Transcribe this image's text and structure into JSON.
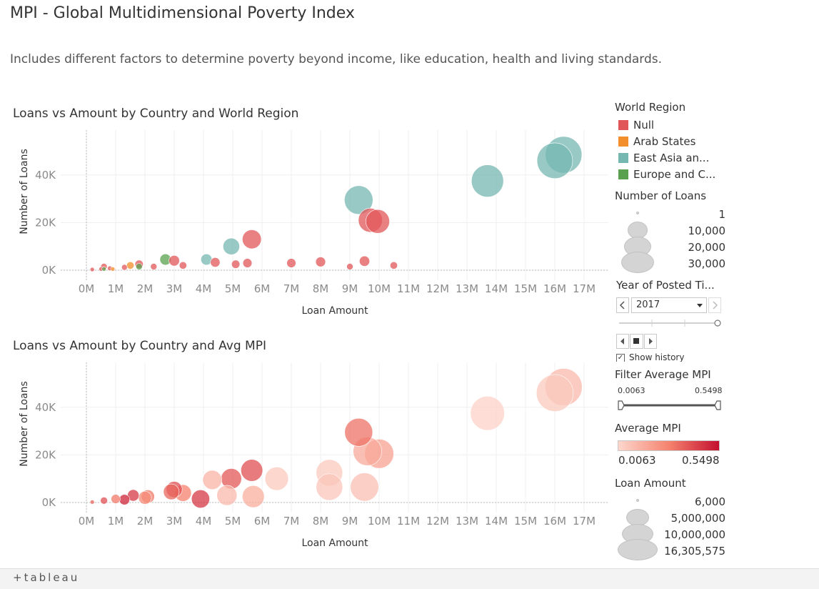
{
  "header": {
    "title": "MPI - Global Multidimensional Poverty Index",
    "subtitle": "Includes different factors to determine poverty beyond income, like education, health and living standards."
  },
  "chart_data": [
    {
      "type": "scatter",
      "title": "Loans vs Amount by Country and World Region",
      "xlabel": "Loan Amount",
      "ylabel": "Number of Loans",
      "xlim": [
        0,
        17
      ],
      "ylim": [
        0,
        50000
      ],
      "x_ticks": [
        "0M",
        "1M",
        "2M",
        "3M",
        "4M",
        "5M",
        "6M",
        "7M",
        "8M",
        "9M",
        "10M",
        "11M",
        "12M",
        "13M",
        "14M",
        "15M",
        "16M",
        "17M"
      ],
      "y_ticks": [
        "0K",
        "20K",
        "40K"
      ],
      "series": [
        {
          "name": "Null",
          "color": "#e15759",
          "points": [
            {
              "x": 0.2,
              "y": 300
            },
            {
              "x": 0.5,
              "y": 500
            },
            {
              "x": 0.8,
              "y": 800
            },
            {
              "x": 1.3,
              "y": 1200
            },
            {
              "x": 2.3,
              "y": 1500
            },
            {
              "x": 3.3,
              "y": 2000
            },
            {
              "x": 5.5,
              "y": 3000
            },
            {
              "x": 9.0,
              "y": 1500
            },
            {
              "x": 10.5,
              "y": 2000
            },
            {
              "x": 5.65,
              "y": 13000
            },
            {
              "x": 9.7,
              "y": 21000
            },
            {
              "x": 9.95,
              "y": 20500
            },
            {
              "x": 3.0,
              "y": 4000
            },
            {
              "x": 4.4,
              "y": 3300
            },
            {
              "x": 7.0,
              "y": 3000
            },
            {
              "x": 8.0,
              "y": 3500
            },
            {
              "x": 9.5,
              "y": 3800
            },
            {
              "x": 1.8,
              "y": 2500
            },
            {
              "x": 0.6,
              "y": 1500
            },
            {
              "x": 5.1,
              "y": 2500
            }
          ]
        },
        {
          "name": "Arab States",
          "color": "#f28e2b",
          "points": [
            {
              "x": 1.5,
              "y": 2000
            },
            {
              "x": 0.9,
              "y": 500
            }
          ]
        },
        {
          "name": "East Asia an...",
          "color": "#76b7b2",
          "points": [
            {
              "x": 16.0,
              "y": 46000
            },
            {
              "x": 16.3,
              "y": 48500
            },
            {
              "x": 13.7,
              "y": 37500
            },
            {
              "x": 9.3,
              "y": 29500
            },
            {
              "x": 4.95,
              "y": 10000
            },
            {
              "x": 4.1,
              "y": 4500
            }
          ]
        },
        {
          "name": "Europe and C...",
          "color": "#59a14f",
          "points": [
            {
              "x": 2.7,
              "y": 4500
            },
            {
              "x": 1.8,
              "y": 1500
            },
            {
              "x": 0.6,
              "y": 500
            }
          ]
        }
      ]
    },
    {
      "type": "scatter",
      "title": "Loans vs Amount by Country and Avg MPI",
      "xlabel": "Loan Amount",
      "ylabel": "Number of Loans",
      "xlim": [
        0,
        17
      ],
      "ylim": [
        0,
        50000
      ],
      "x_ticks": [
        "0M",
        "1M",
        "2M",
        "3M",
        "4M",
        "5M",
        "6M",
        "7M",
        "8M",
        "9M",
        "10M",
        "11M",
        "12M",
        "13M",
        "14M",
        "15M",
        "16M",
        "17M"
      ],
      "y_ticks": [
        "0K",
        "20K",
        "40K"
      ],
      "points": [
        {
          "x": 16.0,
          "y": 46000,
          "mpi": 0.05
        },
        {
          "x": 16.3,
          "y": 48500,
          "mpi": 0.1
        },
        {
          "x": 13.7,
          "y": 37500,
          "mpi": 0.02
        },
        {
          "x": 9.3,
          "y": 29500,
          "mpi": 0.32
        },
        {
          "x": 9.6,
          "y": 21500,
          "mpi": 0.15
        },
        {
          "x": 10.0,
          "y": 20500,
          "mpi": 0.18
        },
        {
          "x": 9.5,
          "y": 6500,
          "mpi": 0.08
        },
        {
          "x": 8.3,
          "y": 12500,
          "mpi": 0.05
        },
        {
          "x": 8.3,
          "y": 6500,
          "mpi": 0.06
        },
        {
          "x": 6.5,
          "y": 10000,
          "mpi": 0.05
        },
        {
          "x": 5.65,
          "y": 13500,
          "mpi": 0.4
        },
        {
          "x": 4.95,
          "y": 10000,
          "mpi": 0.38
        },
        {
          "x": 5.7,
          "y": 2500,
          "mpi": 0.14
        },
        {
          "x": 4.8,
          "y": 3000,
          "mpi": 0.1
        },
        {
          "x": 4.3,
          "y": 9500,
          "mpi": 0.12
        },
        {
          "x": 3.9,
          "y": 1500,
          "mpi": 0.45
        },
        {
          "x": 3.3,
          "y": 4000,
          "mpi": 0.28
        },
        {
          "x": 3.0,
          "y": 5500,
          "mpi": 0.4
        },
        {
          "x": 2.9,
          "y": 4500,
          "mpi": 0.35
        },
        {
          "x": 2.1,
          "y": 2500,
          "mpi": 0.3
        },
        {
          "x": 2.0,
          "y": 2000,
          "mpi": 0.25
        },
        {
          "x": 1.6,
          "y": 3000,
          "mpi": 0.45
        },
        {
          "x": 1.3,
          "y": 1200,
          "mpi": 0.5
        },
        {
          "x": 1.0,
          "y": 1500,
          "mpi": 0.3
        },
        {
          "x": 0.6,
          "y": 800,
          "mpi": 0.4
        },
        {
          "x": 0.2,
          "y": 200,
          "mpi": 0.35
        }
      ]
    }
  ],
  "legend_region": {
    "title": "World Region",
    "items": [
      {
        "label": "Null",
        "color": "#e15759"
      },
      {
        "label": "Arab States",
        "color": "#f28e2b"
      },
      {
        "label": "East Asia an...",
        "color": "#76b7b2"
      },
      {
        "label": "Europe and C...",
        "color": "#59a14f"
      }
    ]
  },
  "legend_loans": {
    "title": "Number of Loans",
    "items": [
      "1",
      "10,000",
      "20,000",
      "30,000"
    ]
  },
  "year_filter": {
    "title": "Year of Posted Ti...",
    "value": "2017",
    "show_history": "Show history"
  },
  "mpi_filter": {
    "title": "Filter Average MPI",
    "min": "0.0063",
    "max": "0.5498"
  },
  "legend_mpi": {
    "title": "Average MPI",
    "min": "0.0063",
    "max": "0.5498"
  },
  "legend_amount": {
    "title": "Loan Amount",
    "items": [
      "6,000",
      "5,000,000",
      "10,000,000",
      "16,305,575"
    ]
  },
  "footer": {
    "logo": "+tableau"
  }
}
